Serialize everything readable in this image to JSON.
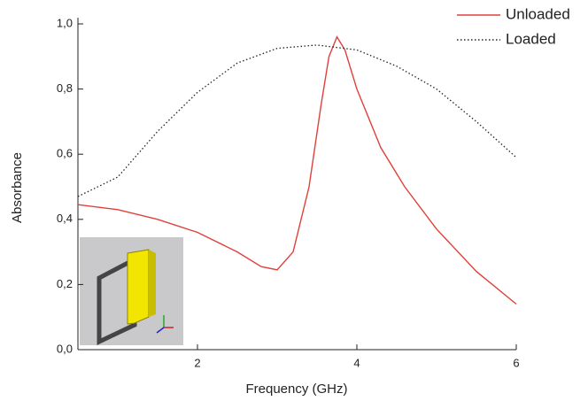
{
  "chart_data": {
    "type": "line",
    "x_label": "Frequency (GHz)",
    "y_label": "Absorbance",
    "xlim": [
      0.5,
      6
    ],
    "ylim": [
      0,
      1
    ],
    "xticks": [
      2,
      4,
      6
    ],
    "yticks": [
      {
        "value": 0,
        "label": "0,0"
      },
      {
        "value": 0.2,
        "label": "0,2"
      },
      {
        "value": 0.4,
        "label": "0,4"
      },
      {
        "value": 0.6,
        "label": "0,6"
      },
      {
        "value": 0.8,
        "label": "0,8"
      },
      {
        "value": 1,
        "label": "1,0"
      }
    ],
    "legend": "upper right",
    "series": [
      {
        "name": "Unloaded",
        "color": "#e0403a",
        "style": "solid",
        "x": [
          0.5,
          1,
          1.5,
          2,
          2.5,
          2.8,
          3.0,
          3.2,
          3.4,
          3.55,
          3.65,
          3.75,
          3.85,
          4,
          4.3,
          4.6,
          5,
          5.5,
          6
        ],
        "values": [
          0.445,
          0.43,
          0.4,
          0.36,
          0.3,
          0.255,
          0.245,
          0.3,
          0.5,
          0.75,
          0.9,
          0.96,
          0.92,
          0.8,
          0.62,
          0.5,
          0.37,
          0.24,
          0.14
        ]
      },
      {
        "name": "Loaded",
        "color": "#222222",
        "style": "dotted",
        "x": [
          0.5,
          1,
          1.5,
          2,
          2.5,
          3,
          3.5,
          4,
          4.5,
          5,
          5.5,
          6
        ],
        "values": [
          0.47,
          0.53,
          0.67,
          0.79,
          0.88,
          0.925,
          0.935,
          0.92,
          0.87,
          0.8,
          0.7,
          0.59
        ]
      }
    ]
  }
}
